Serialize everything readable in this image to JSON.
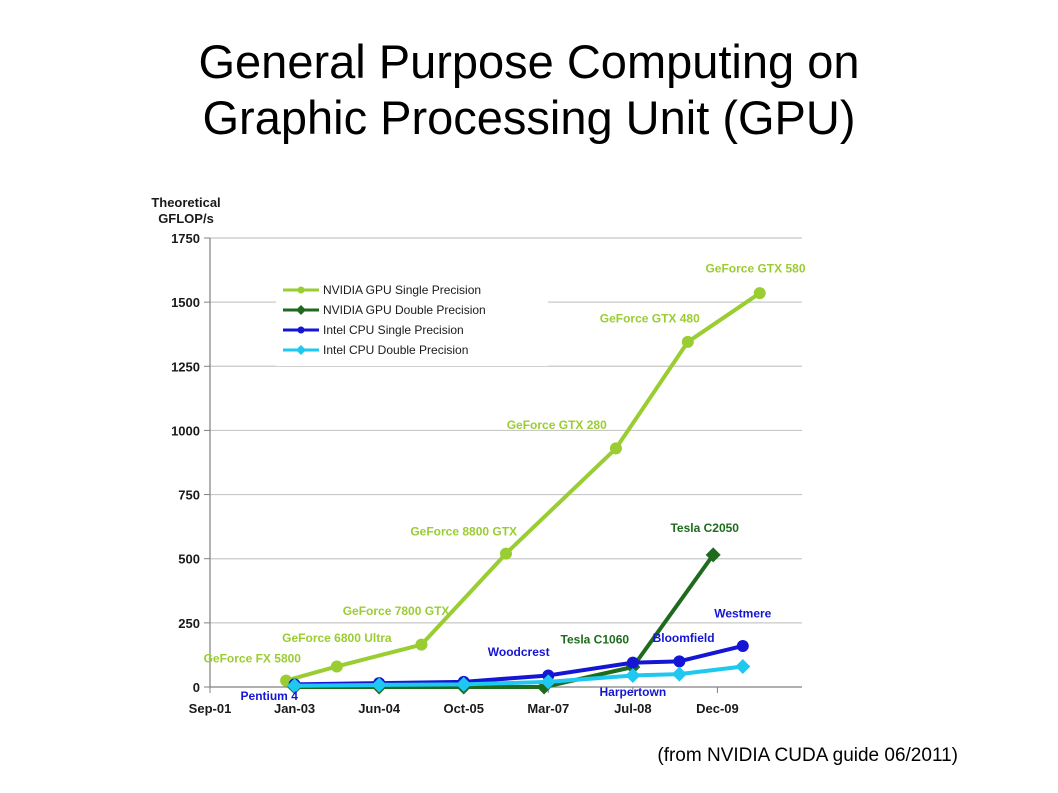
{
  "slide": {
    "title_line1": "General Purpose Computing on",
    "title_line2": "Graphic Processing Unit (GPU)",
    "caption": "(from NVIDIA CUDA guide 06/2011)"
  },
  "chart_data": {
    "type": "line",
    "ylabel": [
      "Theoretical",
      "GFLOP/s"
    ],
    "ylim": [
      0,
      1750
    ],
    "yticks": [
      0,
      250,
      500,
      750,
      1000,
      1250,
      1500,
      1750
    ],
    "xlim": [
      0,
      7
    ],
    "xticks": [
      {
        "label": "Sep-01",
        "x": 0
      },
      {
        "label": "Jan-03",
        "x": 1
      },
      {
        "label": "Jun-04",
        "x": 2
      },
      {
        "label": "Oct-05",
        "x": 3
      },
      {
        "label": "Mar-07",
        "x": 4
      },
      {
        "label": "Jul-08",
        "x": 5
      },
      {
        "label": "Dec-09",
        "x": 6
      }
    ],
    "grid": "horizontal",
    "legend_position": "top-left",
    "series": [
      {
        "name": "NVIDIA GPU Single Precision",
        "color": "#9acd32",
        "marker": "circle",
        "points": [
          [
            0.9,
            25
          ],
          [
            1.5,
            80
          ],
          [
            2.5,
            165
          ],
          [
            3.5,
            520
          ],
          [
            4.8,
            930
          ],
          [
            5.65,
            1345
          ],
          [
            6.5,
            1535
          ]
        ]
      },
      {
        "name": "NVIDIA GPU Double Precision",
        "color": "#1e6b1e",
        "marker": "diamond",
        "points": [
          [
            1.0,
            0
          ],
          [
            2.0,
            0
          ],
          [
            3.0,
            0
          ],
          [
            3.95,
            0
          ],
          [
            5.0,
            78
          ],
          [
            5.95,
            515
          ]
        ]
      },
      {
        "name": "Intel CPU Single Precision",
        "color": "#1515d6",
        "marker": "circle",
        "points": [
          [
            1.0,
            10
          ],
          [
            2.0,
            15
          ],
          [
            3.0,
            20
          ],
          [
            4.0,
            45
          ],
          [
            5.0,
            95
          ],
          [
            5.55,
            100
          ],
          [
            6.3,
            160
          ]
        ]
      },
      {
        "name": "Intel CPU Double Precision",
        "color": "#1ec8f0",
        "marker": "diamond",
        "points": [
          [
            1.0,
            5
          ],
          [
            2.0,
            8
          ],
          [
            3.0,
            10
          ],
          [
            4.0,
            20
          ],
          [
            5.0,
            45
          ],
          [
            5.55,
            50
          ],
          [
            6.3,
            80
          ]
        ]
      }
    ],
    "annotations": [
      {
        "text": "GeForce GTX 580",
        "color": "#9acd32",
        "x": 6.45,
        "y": 1615
      },
      {
        "text": "GeForce GTX 480",
        "color": "#9acd32",
        "x": 5.2,
        "y": 1420
      },
      {
        "text": "GeForce GTX 280",
        "color": "#9acd32",
        "x": 4.1,
        "y": 1005
      },
      {
        "text": "GeForce 8800 GTX",
        "color": "#9acd32",
        "x": 3.0,
        "y": 590
      },
      {
        "text": "GeForce 7800 GTX",
        "color": "#9acd32",
        "x": 2.2,
        "y": 280
      },
      {
        "text": "GeForce 6800 Ultra",
        "color": "#9acd32",
        "x": 1.5,
        "y": 175
      },
      {
        "text": "GeForce FX 5800",
        "color": "#9acd32",
        "x": 0.5,
        "y": 95
      },
      {
        "text": "Tesla C2050",
        "color": "#1e6b1e",
        "x": 5.85,
        "y": 605
      },
      {
        "text": "Tesla C1060",
        "color": "#1e6b1e",
        "x": 4.55,
        "y": 170
      },
      {
        "text": "Westmere",
        "color": "#1515d6",
        "x": 6.3,
        "y": 270
      },
      {
        "text": "Bloomfield",
        "color": "#1515d6",
        "x": 5.6,
        "y": 175
      },
      {
        "text": "Woodcrest",
        "color": "#1515d6",
        "x": 3.65,
        "y": 120
      },
      {
        "text": "Harpertown",
        "color": "#1515d6",
        "x": 5.0,
        "y": -35
      },
      {
        "text": "Pentium 4",
        "color": "#1515d6",
        "x": 0.7,
        "y": -50
      }
    ]
  }
}
